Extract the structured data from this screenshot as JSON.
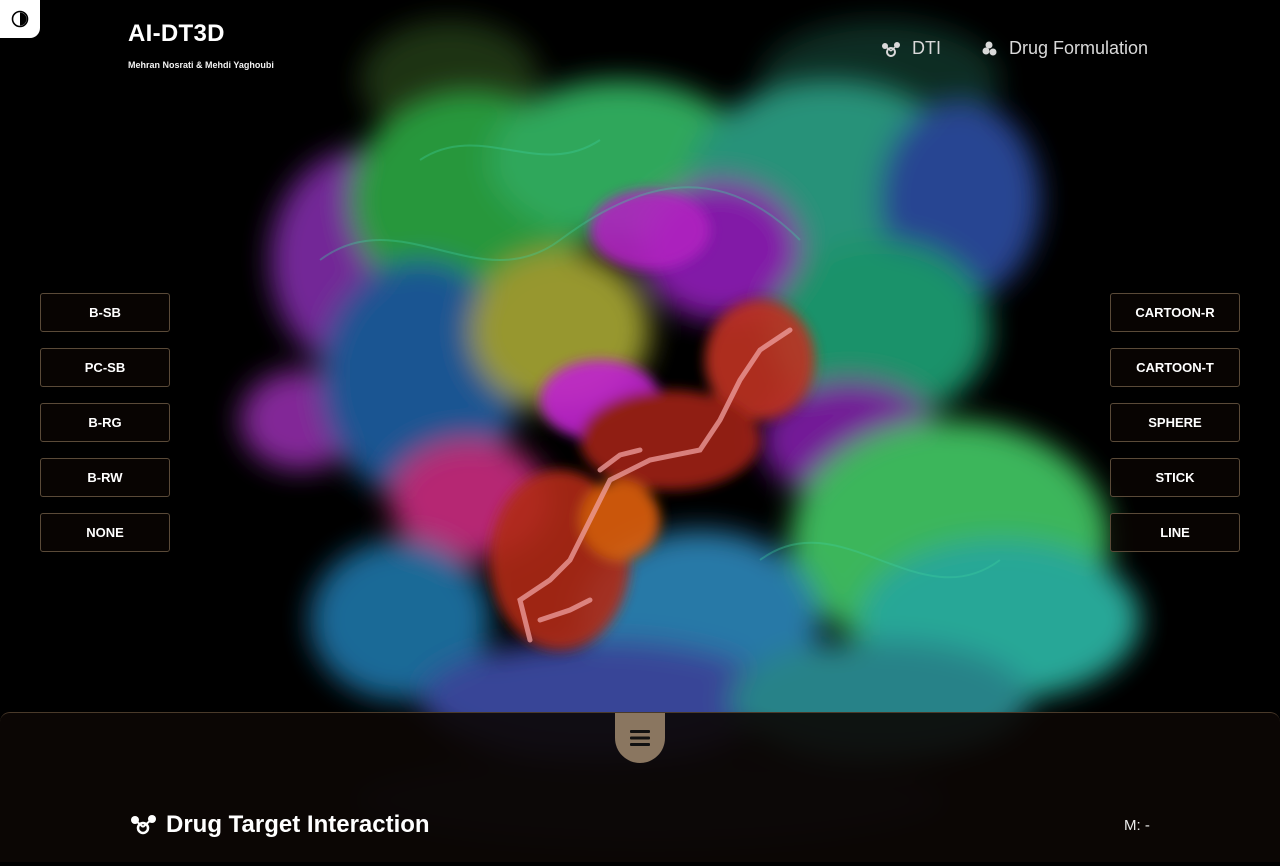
{
  "header": {
    "title": "AI-DT3D",
    "subtitle": "Mehran Nosrati & Mehdi Yaghoubi"
  },
  "nav": {
    "links": [
      {
        "label": "DTI",
        "icon": "molecule-icon"
      },
      {
        "label": "Drug Formulation",
        "icon": "capsule-cluster-icon"
      }
    ]
  },
  "left_buttons": [
    "B-SB",
    "PC-SB",
    "B-RG",
    "B-RW",
    "NONE"
  ],
  "right_buttons": [
    "CARTOON-R",
    "CARTOON-T",
    "SPHERE",
    "STICK",
    "LINE"
  ],
  "panel": {
    "title": "Drug Target Interaction",
    "metric": "M: -"
  },
  "colors": {
    "background": "#000000",
    "button_border": "#5a4a38",
    "handle": "#8a7660",
    "ligand": "#e06050"
  }
}
